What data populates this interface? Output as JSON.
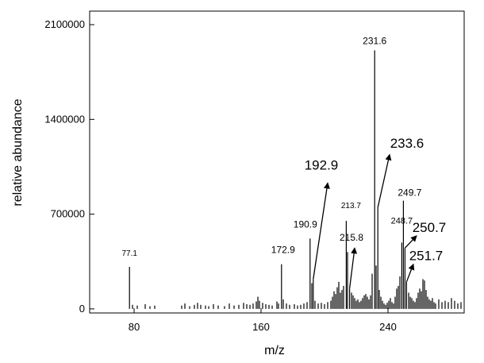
{
  "chart_data": {
    "type": "bar",
    "title": "",
    "xlabel": "m/z",
    "ylabel": "relative abundance",
    "xlim": [
      52,
      288
    ],
    "ylim": [
      -30000,
      2200000
    ],
    "x_ticks": [
      80,
      160,
      240
    ],
    "x_tick_labels": [
      "80",
      "160",
      "240"
    ],
    "y_ticks": [
      0,
      700000,
      1400000,
      2100000
    ],
    "y_tick_labels": [
      "0",
      "700000",
      "1400000",
      "2100000"
    ],
    "grid": false,
    "legend": "none",
    "series": [
      {
        "x": [
          77.1,
          79,
          82,
          87,
          90,
          93,
          110,
          112,
          115,
          118,
          120,
          122,
          125,
          127,
          130,
          133,
          137,
          140,
          143,
          146,
          149,
          151,
          153,
          155,
          157,
          158,
          159,
          161,
          163,
          165,
          167,
          170,
          171,
          172.9,
          174,
          176,
          178,
          181,
          183,
          185,
          187,
          189,
          190.9,
          192,
          192.9,
          194,
          196,
          198,
          200,
          202,
          204,
          205,
          206,
          207,
          208,
          209,
          210,
          211,
          212,
          213.7,
          214.5,
          215.8,
          217,
          218,
          219,
          220,
          221,
          222,
          223,
          224,
          225,
          226,
          227,
          228,
          229,
          230,
          231.6,
          232.5,
          233.6,
          234.5,
          235.5,
          236.5,
          237.5,
          238.5,
          239.5,
          240.5,
          241.5,
          242.5,
          243.5,
          244.5,
          245.5,
          246.5,
          247.5,
          248.7,
          249.7,
          250.7,
          251.7,
          253,
          254,
          255,
          256,
          257,
          258,
          259,
          260,
          261,
          262,
          263,
          264,
          265,
          266,
          267,
          268,
          269,
          270,
          272,
          274,
          276,
          278,
          280,
          282,
          284,
          286
        ],
        "values": [
          310000,
          30000,
          25000,
          35000,
          20000,
          25000,
          25000,
          40000,
          20000,
          30000,
          45000,
          30000,
          25000,
          20000,
          35000,
          25000,
          20000,
          40000,
          25000,
          30000,
          45000,
          35000,
          30000,
          40000,
          55000,
          90000,
          60000,
          45000,
          35000,
          30000,
          25000,
          55000,
          40000,
          330000,
          70000,
          40000,
          30000,
          35000,
          25000,
          30000,
          40000,
          50000,
          520000,
          190000,
          220000,
          60000,
          40000,
          45000,
          35000,
          50000,
          60000,
          90000,
          130000,
          110000,
          160000,
          200000,
          120000,
          140000,
          170000,
          650000,
          420000,
          150000,
          120000,
          100000,
          80000,
          60000,
          70000,
          50000,
          60000,
          80000,
          100000,
          110000,
          90000,
          70000,
          100000,
          260000,
          1910000,
          320000,
          750000,
          140000,
          90000,
          60000,
          40000,
          30000,
          45000,
          60000,
          80000,
          50000,
          40000,
          90000,
          150000,
          170000,
          240000,
          490000,
          800000,
          450000,
          200000,
          120000,
          90000,
          80000,
          60000,
          50000,
          80000,
          120000,
          150000,
          130000,
          220000,
          210000,
          140000,
          90000,
          70000,
          60000,
          80000,
          50000,
          40000,
          70000,
          50000,
          60000,
          50000,
          80000,
          60000,
          40000,
          50000
        ]
      }
    ],
    "annotations": [
      {
        "label": "77.1",
        "x": 77.1,
        "y": 310000
      },
      {
        "label": "172.9",
        "x": 172.9,
        "y": 330000
      },
      {
        "label": "190.9",
        "x": 190.9,
        "y": 520000
      },
      {
        "label": "192.9",
        "x": 192.9,
        "y": 220000,
        "arrow": true
      },
      {
        "label": "213.7",
        "x": 213.7,
        "y": 650000
      },
      {
        "label": "215.8",
        "x": 215.8,
        "y": 150000,
        "arrow": true
      },
      {
        "label": "231.6",
        "x": 231.6,
        "y": 1910000
      },
      {
        "label": "233.6",
        "x": 233.6,
        "y": 750000,
        "arrow": true
      },
      {
        "label": "248.7",
        "x": 248.7,
        "y": 490000
      },
      {
        "label": "249.7",
        "x": 249.7,
        "y": 800000
      },
      {
        "label": "250.7",
        "x": 250.7,
        "y": 450000,
        "arrow": true
      },
      {
        "label": "251.7",
        "x": 251.7,
        "y": 200000,
        "arrow": true
      }
    ]
  }
}
